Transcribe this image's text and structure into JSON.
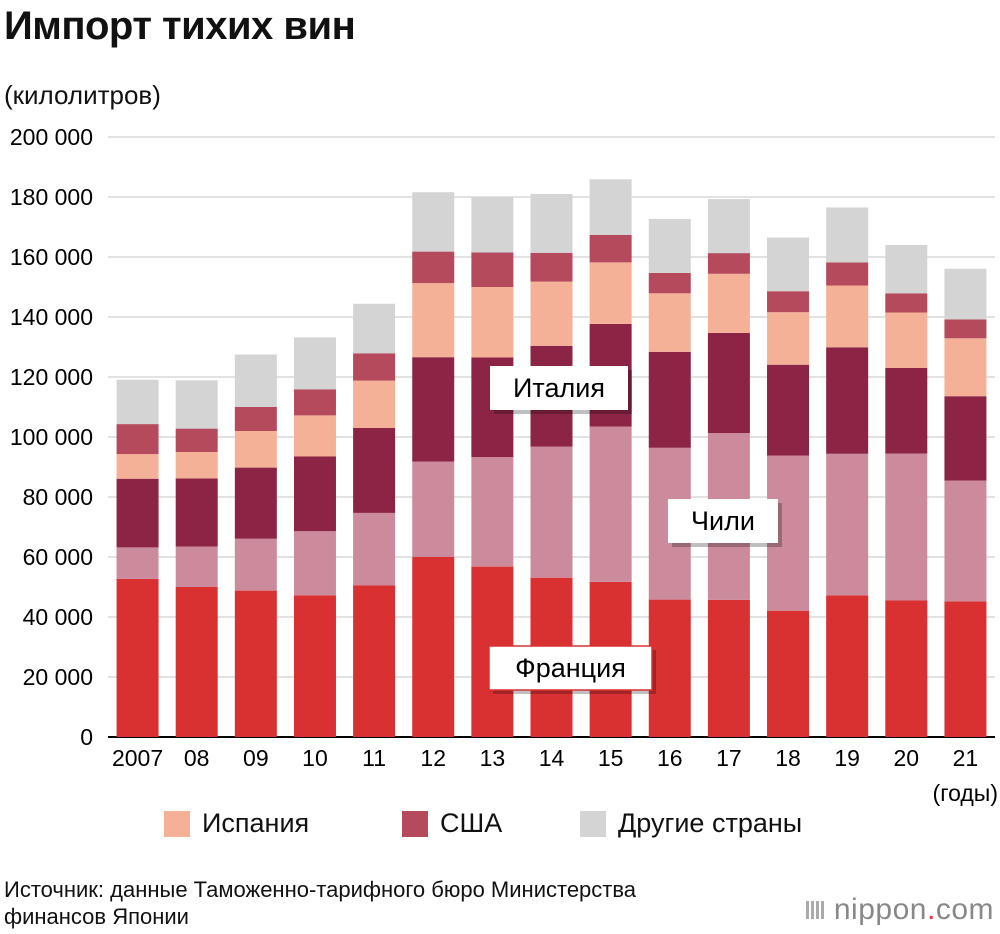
{
  "header": {
    "title": "Импорт тихих вин",
    "unit": "(килолитров)"
  },
  "chart_data": {
    "type": "bar",
    "stacked": true,
    "title": "Импорт тихих вин",
    "ylabel": "(килолитров)",
    "xlabel": "(годы)",
    "ylim": [
      0,
      200000
    ],
    "yticks": [
      0,
      20000,
      40000,
      60000,
      80000,
      100000,
      120000,
      140000,
      160000,
      180000,
      200000
    ],
    "ytick_labels": [
      "0",
      "20 000",
      "40 000",
      "60 000",
      "80 000",
      "100 000",
      "120 000",
      "140 000",
      "160 000",
      "180 000",
      "200 000"
    ],
    "categories": [
      "2007",
      "08",
      "09",
      "10",
      "11",
      "12",
      "13",
      "14",
      "15",
      "16",
      "17",
      "18",
      "19",
      "20",
      "21"
    ],
    "grid": "horizontal",
    "series": [
      {
        "name": "Франция",
        "color": "#d93132",
        "values": [
          52700,
          50000,
          48800,
          47200,
          50500,
          60000,
          56800,
          53100,
          51700,
          45800,
          45700,
          42100,
          47200,
          45500,
          45200
        ]
      },
      {
        "name": "Чили",
        "color": "#cc8b9c",
        "values": [
          10500,
          13500,
          17300,
          21400,
          24200,
          31800,
          36500,
          43700,
          51800,
          50600,
          55600,
          51700,
          47200,
          49000,
          40300
        ]
      },
      {
        "name": "Италия",
        "color": "#8c2445",
        "values": [
          22900,
          22700,
          23700,
          24900,
          28300,
          34800,
          33200,
          33600,
          34200,
          32000,
          33400,
          30300,
          35500,
          28500,
          28100
        ]
      },
      {
        "name": "Испания",
        "color": "#f5b198",
        "values": [
          8200,
          8800,
          12200,
          13700,
          15800,
          24700,
          23500,
          21400,
          20500,
          19500,
          19700,
          17500,
          20600,
          18500,
          19300
        ]
      },
      {
        "name": "США",
        "color": "#b44a5c",
        "values": [
          10000,
          7800,
          8000,
          8700,
          9100,
          10500,
          11500,
          9600,
          9200,
          6800,
          6900,
          7000,
          7700,
          6400,
          6300
        ]
      },
      {
        "name": "Другие страны",
        "color": "#d4d4d4",
        "values": [
          14800,
          16100,
          17500,
          17300,
          16500,
          19800,
          18500,
          19600,
          18500,
          18000,
          18000,
          17900,
          18300,
          16100,
          16900
        ]
      }
    ],
    "callouts": [
      {
        "series": "Италия",
        "label": "Италия"
      },
      {
        "series": "Чили",
        "label": "Чили"
      },
      {
        "series": "Франция",
        "label": "Франция"
      }
    ],
    "legend": [
      "Испания",
      "США",
      "Другие страны"
    ],
    "legend_position": "bottom"
  },
  "footer": {
    "source_line1": "Источник: данные Таможенно-тарифного бюро Министерства",
    "source_line2": "финансов Японии",
    "brand_main": "nippon",
    "brand_dot": ".",
    "brand_tld": "com"
  }
}
